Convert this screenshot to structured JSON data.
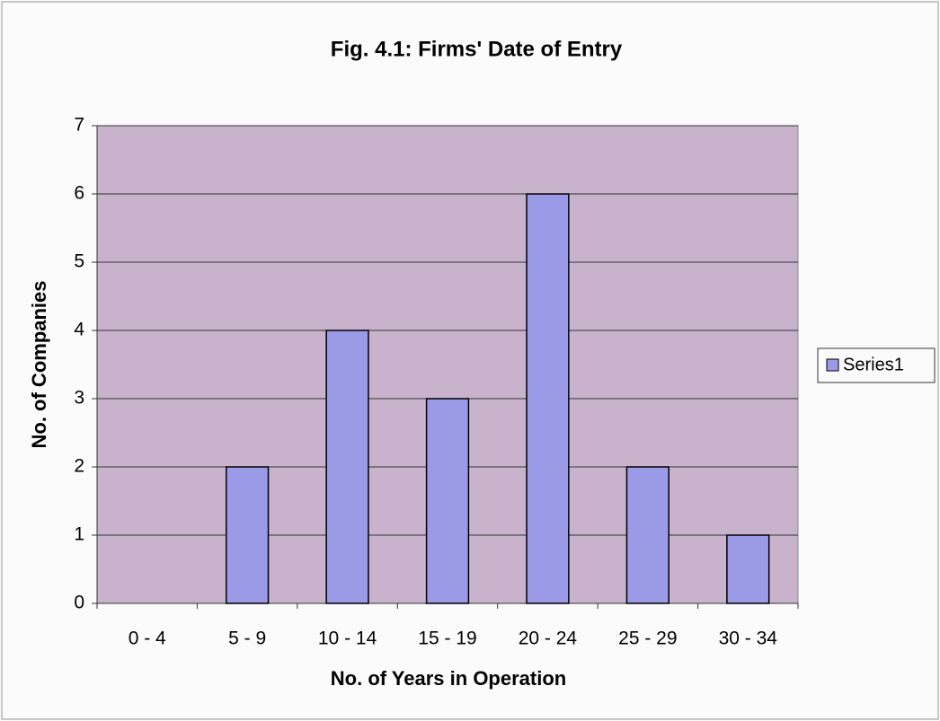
{
  "chart_data": {
    "type": "bar",
    "title": "Fig. 4.1: Firms' Date of Entry",
    "x_label": "No. of Years in Operation",
    "y_label": "No. of Companies",
    "categories": [
      "0 - 4",
      "5 - 9",
      "10 - 14",
      "15 - 19",
      "20 - 24",
      "25 - 29",
      "30 - 34"
    ],
    "series": [
      {
        "name": "Series1",
        "color": "#9a9ae6",
        "values": [
          0,
          2,
          4,
          3,
          6,
          2,
          1
        ]
      }
    ],
    "ylim": [
      0,
      7
    ],
    "yticks": [
      0,
      1,
      2,
      3,
      4,
      5,
      6,
      7
    ],
    "grid": true,
    "legend": "right"
  }
}
